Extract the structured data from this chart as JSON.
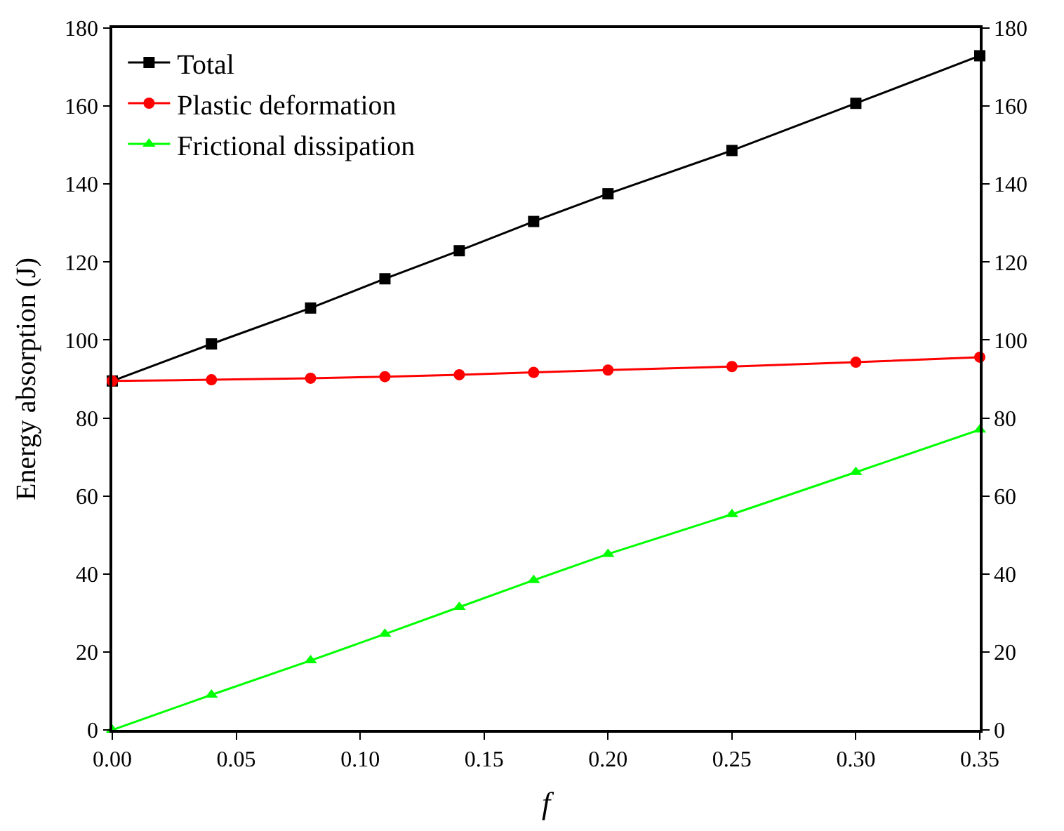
{
  "chart_data": {
    "type": "line",
    "xlabel": "f",
    "ylabel": "Energy absorption (J)",
    "x": [
      0,
      0.04,
      0.08,
      0.11,
      0.14,
      0.17,
      0.2,
      0.25,
      0.3,
      0.35
    ],
    "series": [
      {
        "name": "Total",
        "color": "#000000",
        "marker": "square",
        "values": [
          89.5,
          99,
          108.2,
          115.7,
          122.9,
          130.4,
          137.5,
          148.6,
          160.7,
          172.9
        ]
      },
      {
        "name": "Plastic deformation",
        "color": "#ff0000",
        "marker": "circle",
        "values": [
          89.5,
          89.8,
          90.2,
          90.6,
          91.1,
          91.7,
          92.3,
          93.2,
          94.3,
          95.6
        ]
      },
      {
        "name": "Frictional dissipation",
        "color": "#00ff00",
        "marker": "triangle",
        "values": [
          0,
          9,
          17.8,
          24.6,
          31.5,
          38.4,
          45.1,
          55.3,
          66.1,
          77
        ]
      }
    ],
    "xlim": [
      0,
      0.35
    ],
    "xticks": [
      {
        "value": 0,
        "label": "0.00"
      },
      {
        "value": 0.05,
        "label": "0.05"
      },
      {
        "value": 0.1,
        "label": "0.10"
      },
      {
        "value": 0.15,
        "label": "0.15"
      },
      {
        "value": 0.2,
        "label": "0.20"
      },
      {
        "value": 0.25,
        "label": "0.25"
      },
      {
        "value": 0.3,
        "label": "0.30"
      },
      {
        "value": 0.35,
        "label": "0.35"
      }
    ],
    "ylim": [
      0,
      180
    ],
    "yticks": [
      0,
      20,
      40,
      60,
      80,
      100,
      120,
      140,
      160,
      180
    ],
    "y2lim": [
      0,
      180
    ],
    "y2ticks": [
      0,
      20,
      40,
      60,
      80,
      100,
      120,
      140,
      160,
      180
    ],
    "legend": "top left",
    "line_style": "solid"
  }
}
